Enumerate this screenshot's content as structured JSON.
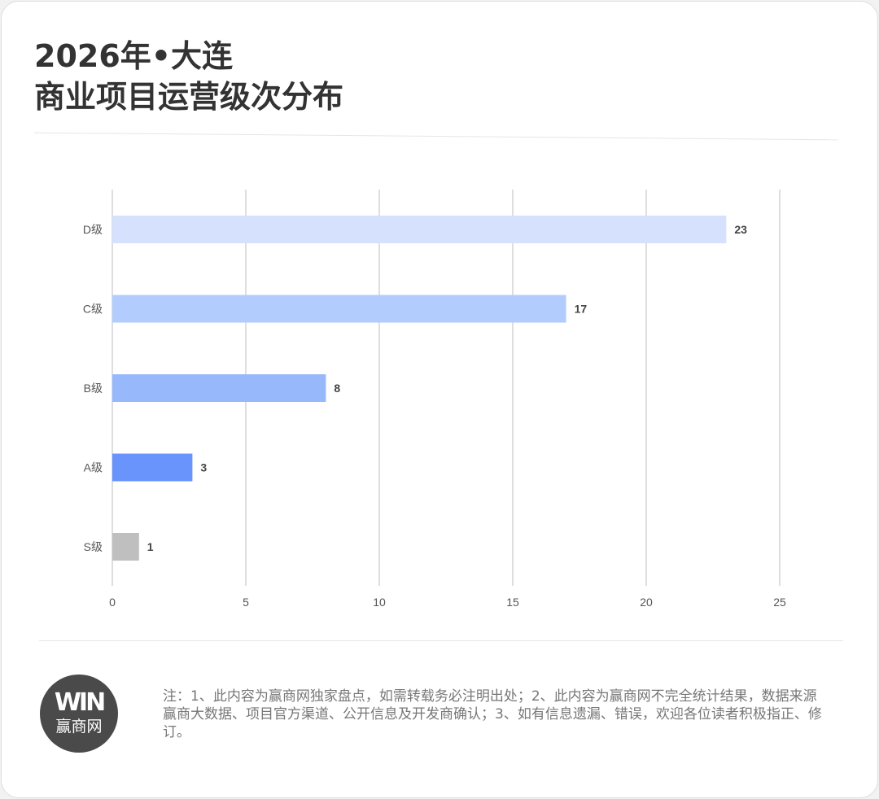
{
  "title_line1": "2026年•大连",
  "title_line2": "商业项目运营级次分布",
  "chart_data": {
    "type": "bar",
    "orientation": "horizontal",
    "categories": [
      "D级",
      "C级",
      "B级",
      "A级",
      "S级"
    ],
    "values": [
      23,
      17,
      8,
      3,
      1
    ],
    "colors": [
      "#d6e1fd",
      "#b2cdfd",
      "#98b8fc",
      "#6894fc",
      "#bfbfbf"
    ],
    "xlim": [
      0,
      25
    ],
    "xticks": [
      0,
      5,
      10,
      15,
      20,
      25
    ],
    "grid": true,
    "data_labels": true
  },
  "logo": {
    "mark": "WIN",
    "name": "赢商网"
  },
  "note": "注：1、此内容为赢商网独家盘点，如需转载务必注明出处；2、此内容为赢商网不完全统计结果，数据来源赢商大数据、项目官方渠道、公开信息及开发商确认；3、如有信息遗漏、错误，欢迎各位读者积极指正、修订。"
}
